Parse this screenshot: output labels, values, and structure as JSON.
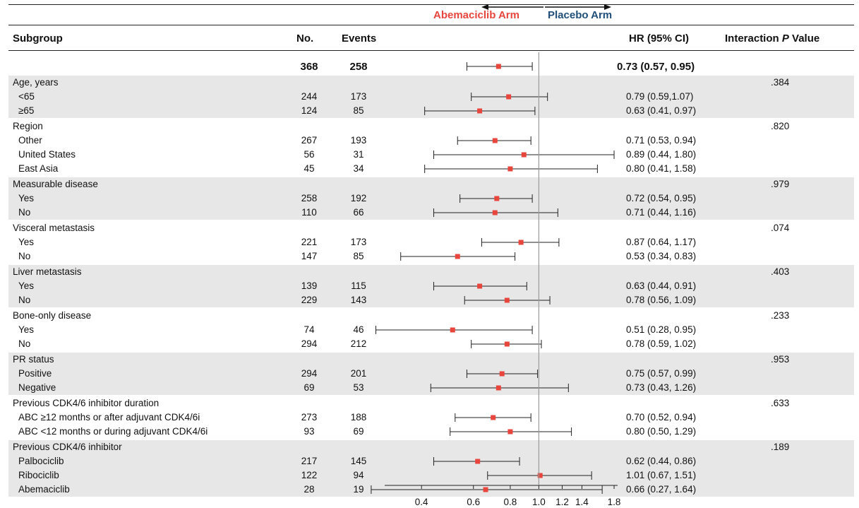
{
  "header": {
    "subgroup": "Subgroup",
    "no": "No.",
    "events": "Events",
    "hr": "HR (95% CI)",
    "interaction_pre": "Interaction ",
    "interaction_p": "P",
    "interaction_post": " Value"
  },
  "arms": {
    "left": "Abemaciclib Arm",
    "right": "Placebo Arm"
  },
  "chart_data": {
    "type": "forest",
    "xaxis": {
      "scale": "log",
      "range": [
        0.3,
        1.85
      ],
      "ticks": [
        0.4,
        0.6,
        0.8,
        1.0,
        1.2,
        1.4,
        1.8
      ],
      "tick_labels": [
        "0.4",
        "0.6",
        "0.8",
        "1.0",
        "1.2",
        "1.4",
        "1.8"
      ],
      "reference_line": 1.0
    },
    "marker_color": "#e8453c",
    "band_color": "#e7e7e7",
    "overall": {
      "no": "368",
      "events": "258",
      "hr": 0.73,
      "lo": 0.57,
      "hi": 0.95,
      "hr_text": "0.73 (0.57, 0.95)"
    },
    "groups": [
      {
        "title": "Age, years",
        "p": ".384",
        "shaded": true,
        "rows": [
          {
            "label": "<65",
            "no": "244",
            "events": "173",
            "hr": 0.79,
            "lo": 0.59,
            "hi": 1.07,
            "hr_text": "0.79 (0.59,1.07)"
          },
          {
            "label": "≥65",
            "no": "124",
            "events": "85",
            "hr": 0.63,
            "lo": 0.41,
            "hi": 0.97,
            "hr_text": "0.63 (0.41, 0.97)"
          }
        ]
      },
      {
        "title": "Region",
        "p": ".820",
        "shaded": false,
        "rows": [
          {
            "label": "Other",
            "no": "267",
            "events": "193",
            "hr": 0.71,
            "lo": 0.53,
            "hi": 0.94,
            "hr_text": "0.71 (0.53, 0.94)"
          },
          {
            "label": "United States",
            "no": "56",
            "events": "31",
            "hr": 0.89,
            "lo": 0.44,
            "hi": 1.8,
            "hr_text": "0.89 (0.44, 1.80)"
          },
          {
            "label": "East Asia",
            "no": "45",
            "events": "34",
            "hr": 0.8,
            "lo": 0.41,
            "hi": 1.58,
            "hr_text": "0.80 (0.41, 1.58)"
          }
        ]
      },
      {
        "title": "Measurable disease",
        "p": ".979",
        "shaded": true,
        "rows": [
          {
            "label": "Yes",
            "no": "258",
            "events": "192",
            "hr": 0.72,
            "lo": 0.54,
            "hi": 0.95,
            "hr_text": "0.72 (0.54, 0.95)"
          },
          {
            "label": "No",
            "no": "110",
            "events": "66",
            "hr": 0.71,
            "lo": 0.44,
            "hi": 1.16,
            "hr_text": "0.71 (0.44, 1.16)"
          }
        ]
      },
      {
        "title": "Visceral metastasis",
        "p": ".074",
        "shaded": false,
        "rows": [
          {
            "label": "Yes",
            "no": "221",
            "events": "173",
            "hr": 0.87,
            "lo": 0.64,
            "hi": 1.17,
            "hr_text": "0.87 (0.64, 1.17)"
          },
          {
            "label": "No",
            "no": "147",
            "events": "85",
            "hr": 0.53,
            "lo": 0.34,
            "hi": 0.83,
            "hr_text": "0.53 (0.34, 0.83)"
          }
        ]
      },
      {
        "title": "Liver metastasis",
        "p": ".403",
        "shaded": true,
        "rows": [
          {
            "label": "Yes",
            "no": "139",
            "events": "115",
            "hr": 0.63,
            "lo": 0.44,
            "hi": 0.91,
            "hr_text": "0.63 (0.44, 0.91)"
          },
          {
            "label": "No",
            "no": "229",
            "events": "143",
            "hr": 0.78,
            "lo": 0.56,
            "hi": 1.09,
            "hr_text": "0.78 (0.56, 1.09)"
          }
        ]
      },
      {
        "title": "Bone-only disease",
        "p": ".233",
        "shaded": false,
        "rows": [
          {
            "label": "Yes",
            "no": "74",
            "events": "46",
            "hr": 0.51,
            "lo": 0.28,
            "hi": 0.95,
            "hr_text": "0.51 (0.28, 0.95)"
          },
          {
            "label": "No",
            "no": "294",
            "events": "212",
            "hr": 0.78,
            "lo": 0.59,
            "hi": 1.02,
            "hr_text": "0.78 (0.59, 1.02)"
          }
        ]
      },
      {
        "title": "PR status",
        "p": ".953",
        "shaded": true,
        "rows": [
          {
            "label": "Positive",
            "no": "294",
            "events": "201",
            "hr": 0.75,
            "lo": 0.57,
            "hi": 0.99,
            "hr_text": "0.75 (0.57, 0.99)"
          },
          {
            "label": "Negative",
            "no": "69",
            "events": "53",
            "hr": 0.73,
            "lo": 0.43,
            "hi": 1.26,
            "hr_text": "0.73 (0.43, 1.26)"
          }
        ]
      },
      {
        "title": "Previous CDK4/6 inhibitor duration",
        "p": ".633",
        "shaded": false,
        "rows": [
          {
            "label": "ABC ≥12 months or after adjuvant CDK4/6i",
            "no": "273",
            "events": "188",
            "hr": 0.7,
            "lo": 0.52,
            "hi": 0.94,
            "hr_text": "0.70 (0.52, 0.94)"
          },
          {
            "label": "ABC <12 months or during adjuvant CDK4/6i",
            "no": "93",
            "events": "69",
            "hr": 0.8,
            "lo": 0.5,
            "hi": 1.29,
            "hr_text": "0.80 (0.50, 1.29)"
          }
        ]
      },
      {
        "title": "Previous CDK4/6 inhibitor",
        "p": ".189",
        "shaded": true,
        "rows": [
          {
            "label": "Palbociclib",
            "no": "217",
            "events": "145",
            "hr": 0.62,
            "lo": 0.44,
            "hi": 0.86,
            "hr_text": "0.62 (0.44, 0.86)"
          },
          {
            "label": "Ribociclib",
            "no": "122",
            "events": "94",
            "hr": 1.01,
            "lo": 0.67,
            "hi": 1.51,
            "hr_text": "1.01 (0.67, 1.51)"
          },
          {
            "label": "Abemaciclib",
            "no": "28",
            "events": "19",
            "hr": 0.66,
            "lo": 0.27,
            "hi": 1.64,
            "hr_text": "0.66 (0.27, 1.64)"
          }
        ]
      }
    ]
  }
}
